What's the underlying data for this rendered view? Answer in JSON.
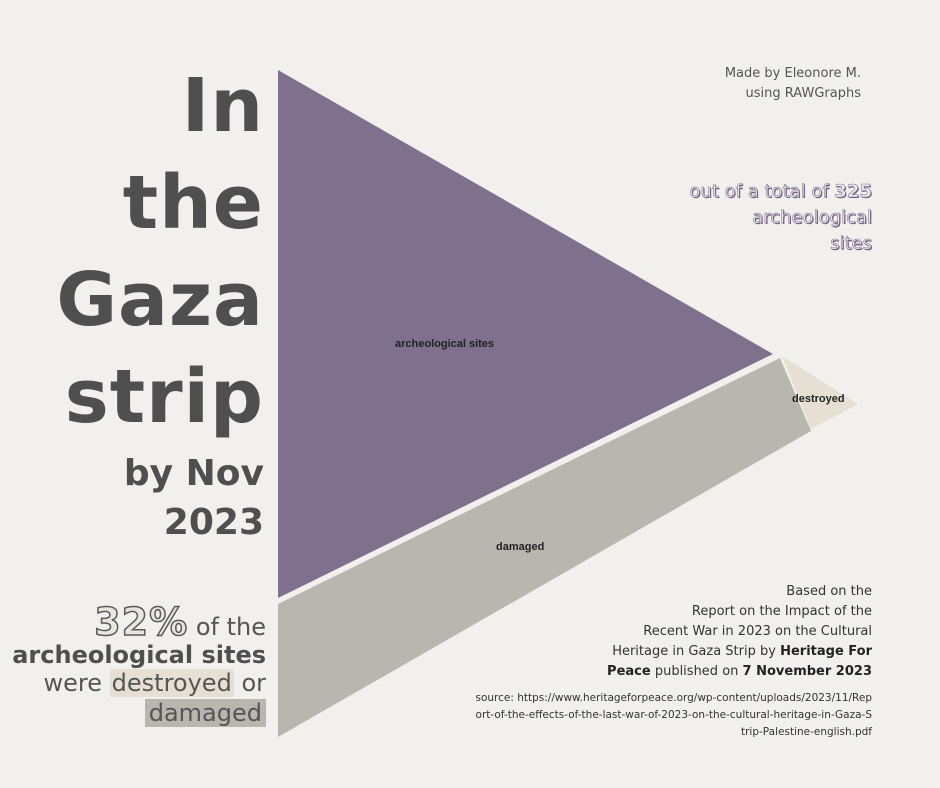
{
  "title": {
    "lines": [
      "In",
      "the",
      "Gaza",
      "strip"
    ],
    "sub_lines": [
      "by Nov",
      "2023"
    ]
  },
  "stat": {
    "percent": "32%",
    "text1": "of the",
    "text2": "archeological sites",
    "text3": "were",
    "destroyed": "destroyed",
    "or": "or",
    "damaged": "damaged"
  },
  "credit": {
    "line1": "Made by Eleonore M.",
    "line2": "using RAWGraphs"
  },
  "total": {
    "prefix": "out of a total of",
    "number": "325",
    "line2": "archeological",
    "line3": "sites"
  },
  "based": {
    "line1": "Based on the",
    "line2": "Report on the Impact of the",
    "line3": "Recent War in 2023 on the Cultural",
    "line4a": "Heritage in Gaza Strip by",
    "org": "Heritage For",
    "org2": "Peace",
    "published": "published on",
    "date": "7 November 2023"
  },
  "source": {
    "prefix": "source:",
    "url": "https://www.heritageforpeace.org/wp-content/uploads/2023/11/Report-of-the-effects-of-the-last-war-of-2023-on-the-cultural-heritage-in-Gaza-Strip-Palestine-english.pdf"
  },
  "chart_data": {
    "type": "area",
    "total": 325,
    "segments": [
      {
        "label": "archeological sites",
        "value": 221,
        "color": "#7f708e"
      },
      {
        "label": "damaged",
        "value": 94,
        "color": "#b8b6ae"
      },
      {
        "label": "destroyed",
        "value": 10,
        "color": "#e5e0d3"
      }
    ]
  }
}
